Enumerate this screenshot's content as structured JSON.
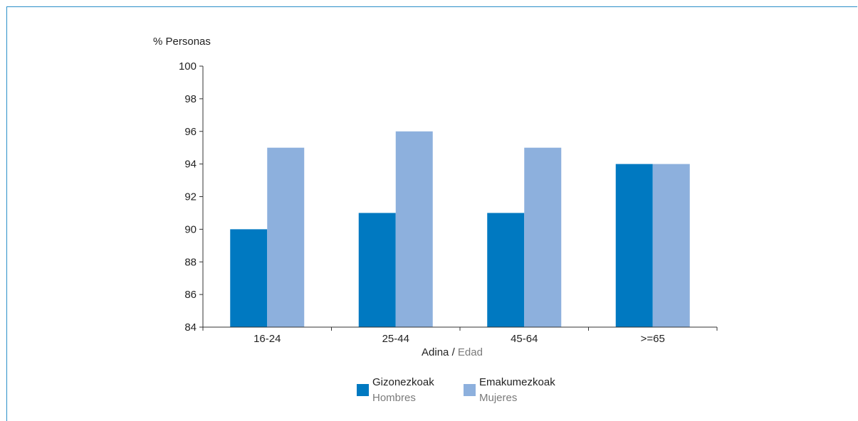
{
  "chart_data": {
    "type": "bar",
    "ylabel": "% Personas",
    "xlabel": {
      "primary": "Adina",
      "separator": " / ",
      "secondary": "Edad"
    },
    "categories": [
      "16-24",
      "25-44",
      "45-64",
      ">=65"
    ],
    "ylim": [
      84,
      100
    ],
    "yticks": [
      84,
      86,
      88,
      90,
      92,
      94,
      96,
      98,
      100
    ],
    "grid": false,
    "legend_position": "bottom",
    "series": [
      {
        "name": "Gizonezkoak",
        "name_secondary": "Hombres",
        "color": "#0079c1",
        "values": [
          90,
          91,
          91,
          94
        ]
      },
      {
        "name": "Emakumezkoak",
        "name_secondary": "Mujeres",
        "color": "#8db0dd",
        "values": [
          95,
          96,
          95,
          94
        ]
      }
    ]
  },
  "colors": {
    "frame": "#2b8fc8",
    "axis": "#333333",
    "text": "#222222",
    "muted_text": "#7a7a7a"
  }
}
